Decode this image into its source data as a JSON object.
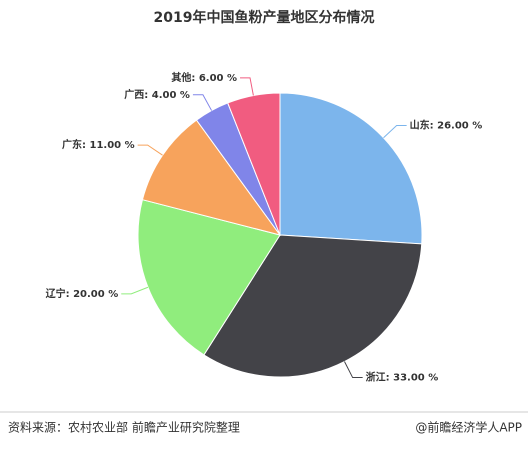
{
  "chart_data": {
    "type": "pie",
    "title": "2019年中国鱼粉产量地区分布情况",
    "categories": [
      "山东",
      "浙江",
      "辽宁",
      "广东",
      "广西",
      "其他"
    ],
    "values": [
      26,
      33,
      20,
      11,
      4,
      6
    ],
    "value_labels": [
      "山东: 26.00 %",
      "浙江: 33.00 %",
      "辽宁: 20.00 %",
      "广东: 11.00 %",
      "广西: 4.00 %",
      "其他: 6.00 %"
    ],
    "colors": [
      "#7cb5ec",
      "#434348",
      "#90ed7d",
      "#f7a35c",
      "#8085e9",
      "#f15c80"
    ]
  },
  "footer": {
    "source": "资料来源：农村农业部 前瞻产业研究院整理",
    "brand": "@前瞻经济学人APP"
  }
}
